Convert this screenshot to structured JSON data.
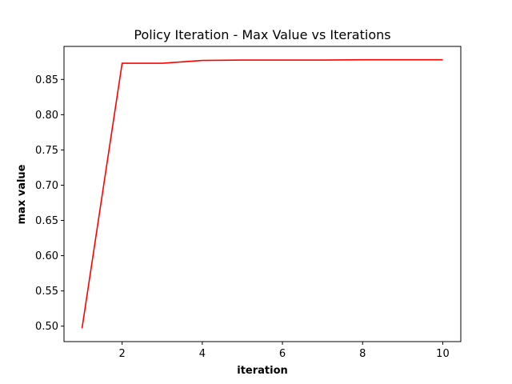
{
  "chart_data": {
    "type": "line",
    "title": "Policy Iteration - Max Value vs Iterations",
    "xlabel": "iteration",
    "ylabel": "max value",
    "x": [
      1,
      2,
      3,
      4,
      5,
      6,
      7,
      8,
      9,
      10
    ],
    "series": [
      {
        "values": [
          0.497,
          0.873,
          0.873,
          0.877,
          0.8775,
          0.8775,
          0.8775,
          0.878,
          0.878,
          0.878
        ],
        "color": "#ff0000"
      }
    ],
    "xlim": [
      0.55,
      10.45
    ],
    "ylim": [
      0.4781,
      0.8969
    ],
    "xticks": [
      2,
      4,
      6,
      8,
      10
    ],
    "yticks": [
      0.5,
      0.55,
      0.6,
      0.65,
      0.7,
      0.75,
      0.8,
      0.85
    ],
    "xtick_labels": [
      "2",
      "4",
      "6",
      "8",
      "10"
    ],
    "ytick_labels": [
      "0.50",
      "0.55",
      "0.60",
      "0.65",
      "0.70",
      "0.75",
      "0.80",
      "0.85"
    ],
    "grid": false,
    "legend": "none"
  }
}
